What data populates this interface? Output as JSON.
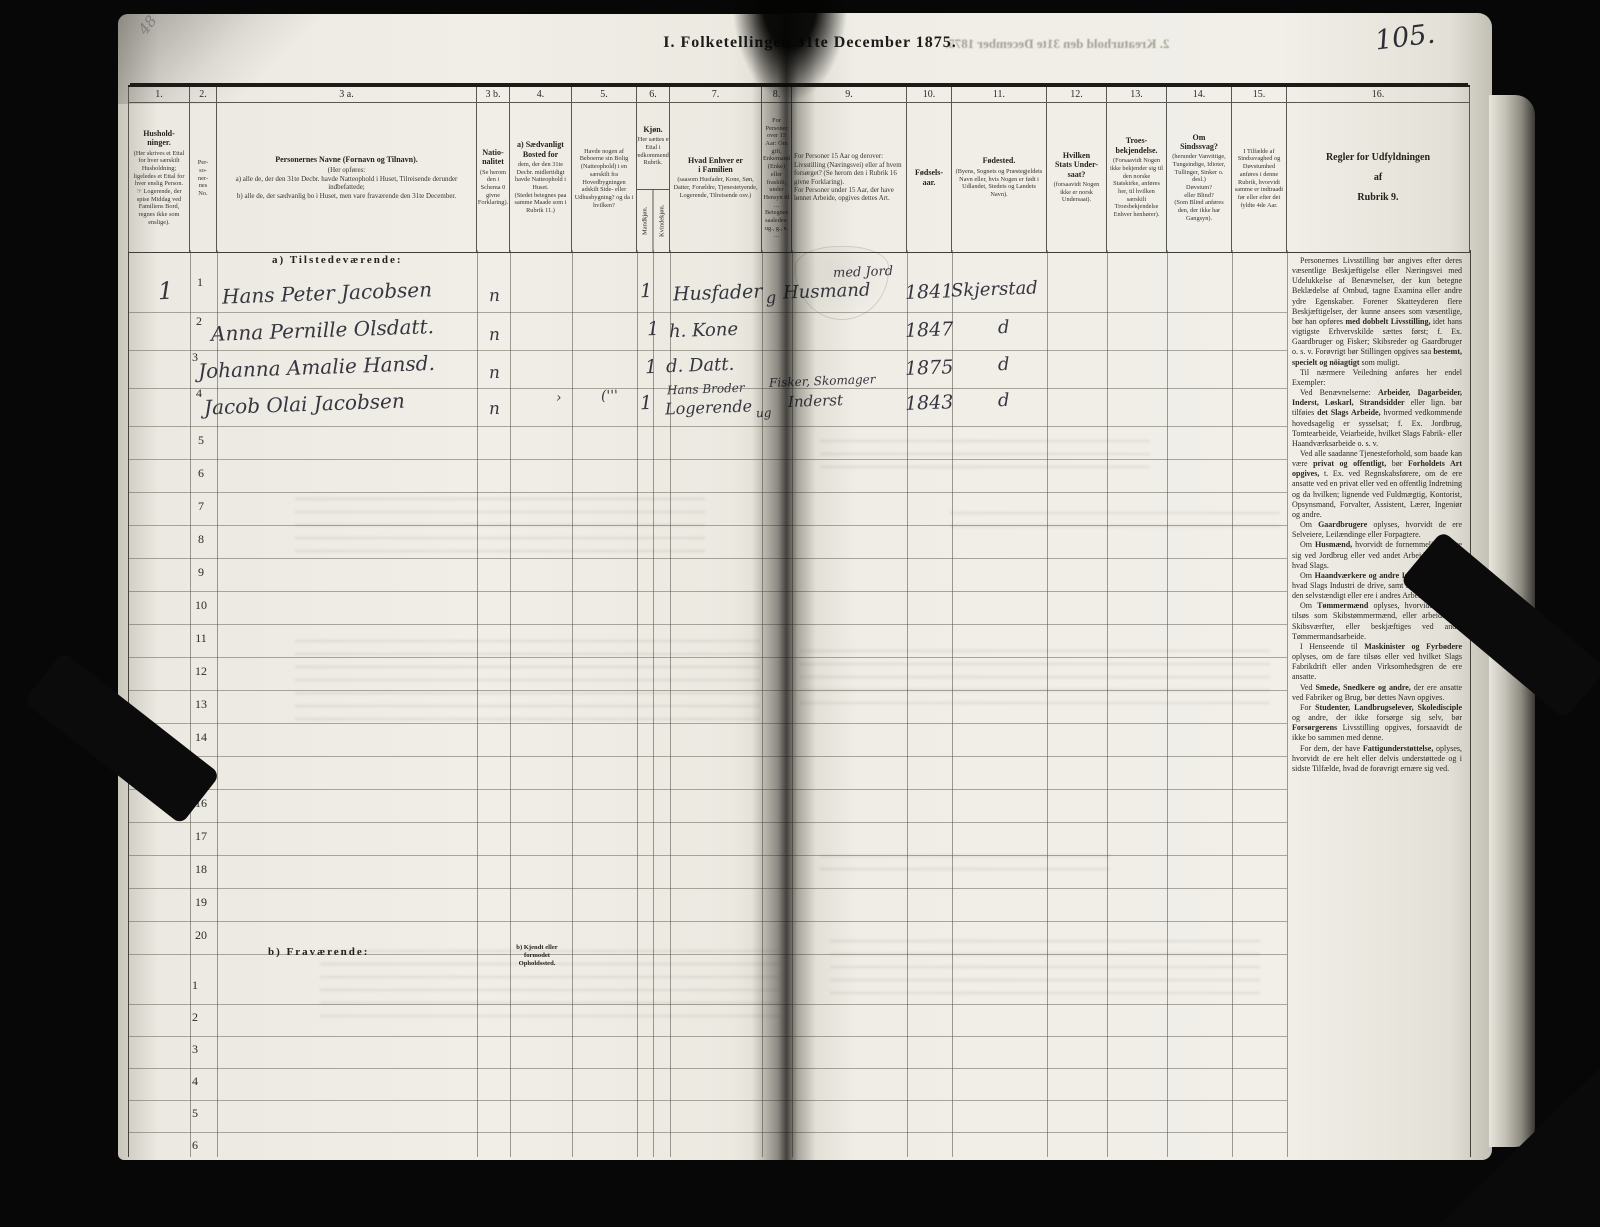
{
  "page": {
    "number": "105.",
    "title": "I. Folketellingen 31te December 1875.",
    "pencil_mark": "48"
  },
  "ghost": {
    "bleed_title": "2. Kreaturhold den 31te December 1875."
  },
  "columns": [
    {
      "no": "1.",
      "title": "Hushold-\nninger.",
      "text": "(Her skrives et Ettal for hver særskilt Husholdning; ligeledes et Ettal for hver enslig Person.\n☞ Logerende, der spise Middag ved Familiens Bord, regnes ikke som enslige)."
    },
    {
      "no": "2.",
      "title": "",
      "text": "Per-\nso-\nner-\nnes\nNo."
    },
    {
      "no": "3 a.",
      "title": "Personernes Navne (Fornavn og Tilnavn).",
      "text": "(Her opføres:\na) alle de, der den 31te Decbr. havde Natteophold i Huset, Tilreisende derunder indbefattede;\nb) alle de, der sædvanlig bo i Huset, men vare fraværende den 31te December."
    },
    {
      "no": "3 b.",
      "title": "Natio-\nnalitet",
      "text": "(Se herom den i Schema 0 givne Forklaring)."
    },
    {
      "no": "4.",
      "title": "a) Sædvanligt\nBosted for",
      "text": "dem, der den 31te Decbr. midlertidigt havde Natteophold i Huset.\n(Stedet betegnes paa samme Maade som i Rubrik 11.)"
    },
    {
      "no": "5.",
      "title": "",
      "text": "Havde nogen af Beboerne sin Bolig (Natteophold) i en særskilt fra Hovedbygningen adskilt Side- eller Udhusbygning? og da i hvilken?"
    },
    {
      "no": "6.",
      "title": "Kjøn.",
      "text": "(Her sættes et Ettal i vedkommende Rubrik.",
      "subs": [
        "Mandkjøn.",
        "Kvindekjøn."
      ]
    },
    {
      "no": "7.",
      "title": "Hvad Enhver er\ni Familien",
      "text": "(saasom Husfader, Kone, Søn, Datter, Forældre, Tjenestetyende, Logerende, Tilreisende osv.)"
    },
    {
      "no": "8.",
      "title": "",
      "text": "For Personer over 15 Aar: Om gift, Enkemand (Enke) eller fraskilt, under Hensyn til … Betegnes saaledes: ug., g., e. …"
    },
    {
      "no": "9.",
      "title": "",
      "text": "For Personer 15 Aar og derover: Livsstilling (Næringsvei) eller af hvem forsørget? (Se herom den i Rubrik 16 givne Forklaring).\nFor Personer under 15 Aar, der have lønnet Arbeide, opgives dettes Art."
    },
    {
      "no": "10.",
      "title": "Fødsels-\naar.",
      "text": ""
    },
    {
      "no": "11.",
      "title": "Fødested.",
      "text": "(Byens, Sognets og Præstegjeldets Navn eller, hvis Nogen er født i Udlandet, Stedets og Landets Navn)."
    },
    {
      "no": "12.",
      "title": "Hvilken\nStats Under-\nsaat?",
      "text": "(forsaavidt Nogen ikke er norsk Undersaat)."
    },
    {
      "no": "13.",
      "title": "Troes-\nbekjendelse.",
      "text": "(Forsaavidt Nogen ikke bekjender sig til den norske Statskirke, anføres her, til hvilken særskilt Troesbekjendelse Enhver henhører)."
    },
    {
      "no": "14.",
      "title": "Om\nSindssvag?",
      "text": "(herunder Vanvittige, Tungsindige, Idioter, Tullinger, Sinker o. desl.)\nDøvstum?\neller Blind?\n(Som Blind anføres den, der ikke har Gangsyn)."
    },
    {
      "no": "15.",
      "title": "",
      "text": "I Tilfælde af Sindssvaghed og Døvstumhed anføres i denne Rubrik, hvorvidt samme er indtraadt før eller efter det fyldte 4de Aar."
    },
    {
      "no": "16.",
      "title": "Regler for Udfyldningen\naf\nRubrik 9.",
      "text": ""
    }
  ],
  "sections": {
    "a_label": "a) Tilstedeværende:",
    "b_label": "b) Fraværende:",
    "b_note": "b) Kjendt eller\nformodet\nOpholdssted.",
    "a_row_numbers": [
      "5",
      "6",
      "7",
      "8",
      "9",
      "10",
      "11",
      "12",
      "13",
      "14",
      "15",
      "16",
      "17",
      "18",
      "19",
      "20"
    ],
    "b_row_numbers": [
      "1",
      "2",
      "3",
      "4",
      "5",
      "6"
    ]
  },
  "entries": [
    {
      "household": "1",
      "person": "1",
      "name": "Hans Peter Jacobsen",
      "nationality": "n",
      "male": "1",
      "family": "Husfader",
      "status": "g",
      "occupation_note": "med Jord",
      "occupation": "Husmand",
      "born": "1841",
      "birthplace": "Skjerstad"
    },
    {
      "person": "2",
      "name": "Anna Pernille Olsdatt.",
      "nationality": "n",
      "female": "1",
      "family": "h. Kone",
      "born": "1847",
      "birthplace": "d"
    },
    {
      "person": "3",
      "name": "Johanna Amalie Hansd.",
      "nationality": "n",
      "female": "1",
      "family": "d. Datt.",
      "born": "1875",
      "birthplace": "d"
    },
    {
      "person": "4",
      "name": "Jacob Olai Jacobsen",
      "nationality": "n",
      "mark_a": "›",
      "mark_b": "('''",
      "male": "1",
      "family_note": "Hans Broder",
      "family": "Logerende",
      "family_suffix": "ug",
      "occupation_note": "Fisker, Skomager",
      "occupation": "Inderst",
      "born": "1843",
      "birthplace": "d"
    }
  ],
  "rubrik9": {
    "paragraphs": [
      [
        {
          "b": 0,
          "t": "Personernes Livsstilling bør angives efter deres væsentlige Beskjæftigelse eller Næringsvei med Udelukkelse af Benævnelser, der kun betegne Beklædelse af Ombud, tagne Examina eller andre ydre Egenskaber. Forener Skatteyderen flere Beskjæftigelser, der kunne ansees som væsentlige, bør han opføres "
        },
        {
          "b": 1,
          "t": "med dobbelt Livsstilling,"
        },
        {
          "b": 0,
          "t": " idet hans vigtigste Erhvervskilde sættes først; f. Ex. Gaardbruger og Fisker; Skibsreder og Gaardbruger o. s. v. Forøvrigt bør Stillingen opgives saa "
        },
        {
          "b": 1,
          "t": "bestemt, specielt og nöiagtigt"
        },
        {
          "b": 0,
          "t": " som muligt."
        }
      ],
      [
        {
          "b": 0,
          "t": "Til nærmere Veiledning anføres her endel Exempler:"
        }
      ],
      [
        {
          "b": 0,
          "t": "Ved Benævnelserne: "
        },
        {
          "b": 1,
          "t": "Arbeider, Dagarbeider, Inderst, Løskarl, Strandsidder"
        },
        {
          "b": 0,
          "t": " eller lign. bør tilføies "
        },
        {
          "b": 1,
          "t": "det Slags Arbeide,"
        },
        {
          "b": 0,
          "t": " hvormed vedkommende hovedsagelig er sysselsat; f. Ex. Jordbrug, Tomtearbeide, Veiarbeide, hvilket Slags Fabrik- eller Haandværksarbeide o. s. v."
        }
      ],
      [
        {
          "b": 0,
          "t": "Ved alle saadanne Tjenesteforhold, som baade kan være "
        },
        {
          "b": 1,
          "t": "privat og offentligt,"
        },
        {
          "b": 0,
          "t": " bør "
        },
        {
          "b": 1,
          "t": "Forholdets Art opgives,"
        },
        {
          "b": 0,
          "t": " t. Ex. ved Regnskabsførere, om de ere ansatte ved en privat eller ved en offentlig Indretning og da hvilken; lignende ved Fuldmægtig, Kontorist, Opsynsmand, Forvalter, Assistent, Lærer, Ingeniør og andre."
        }
      ],
      [
        {
          "b": 0,
          "t": "Om "
        },
        {
          "b": 1,
          "t": "Gaardbrugere"
        },
        {
          "b": 0,
          "t": " oplyses, hvorvidt de ere Selveiere, Leilændinge eller Forpagtere."
        }
      ],
      [
        {
          "b": 0,
          "t": "Om "
        },
        {
          "b": 1,
          "t": "Husmænd,"
        },
        {
          "b": 0,
          "t": " hvorvidt de fornemmelig ernære sig ved Jordbrug eller ved andet Arbeide, og da af hvad Slags."
        }
      ],
      [
        {
          "b": 0,
          "t": "Om "
        },
        {
          "b": 1,
          "t": "Haandværkere og andre Industridrivende,"
        },
        {
          "b": 0,
          "t": " hvad Slags Industri de drive, samt hvorvidt de drive den selvstændigt eller ere i andres Arbeide."
        }
      ],
      [
        {
          "b": 0,
          "t": "Om "
        },
        {
          "b": 1,
          "t": "Tømmermænd"
        },
        {
          "b": 0,
          "t": " oplyses, hvorvidt de fare tilsøs som Skibstømmermænd, eller arbeide paa Skibsværfter, eller beskjæftiges ved andet Tømmermandsarbeide."
        }
      ],
      [
        {
          "b": 0,
          "t": "I Henseende til "
        },
        {
          "b": 1,
          "t": "Maskinister og Fyrbødere"
        },
        {
          "b": 0,
          "t": " oplyses, om de fare tilsøs eller ved hvilket Slags Fabrikdrift eller anden Virksomhedsgren de ere ansatte."
        }
      ],
      [
        {
          "b": 0,
          "t": "Ved "
        },
        {
          "b": 1,
          "t": "Smede, Snedkere og andre,"
        },
        {
          "b": 0,
          "t": " der ere ansatte ved Fabriker og Brug, bør dettes Navn opgives."
        }
      ],
      [
        {
          "b": 0,
          "t": "For "
        },
        {
          "b": 1,
          "t": "Studenter, Landbrugselever, Skoledisciple"
        },
        {
          "b": 0,
          "t": " og andre, der ikke forsørge sig selv, bør "
        },
        {
          "b": 1,
          "t": "Forsørgerens"
        },
        {
          "b": 0,
          "t": " Livsstilling opgives, forsaavidt de ikke bo sammen med denne."
        }
      ],
      [
        {
          "b": 0,
          "t": "For dem, der have "
        },
        {
          "b": 1,
          "t": "Fattigunderstøttelse,"
        },
        {
          "b": 0,
          "t": " oplyses, hvorvidt de ere helt eller delvis understøttede og i sidste Tilfælde, hvad de forøvrigt ernære sig ved."
        }
      ]
    ]
  }
}
